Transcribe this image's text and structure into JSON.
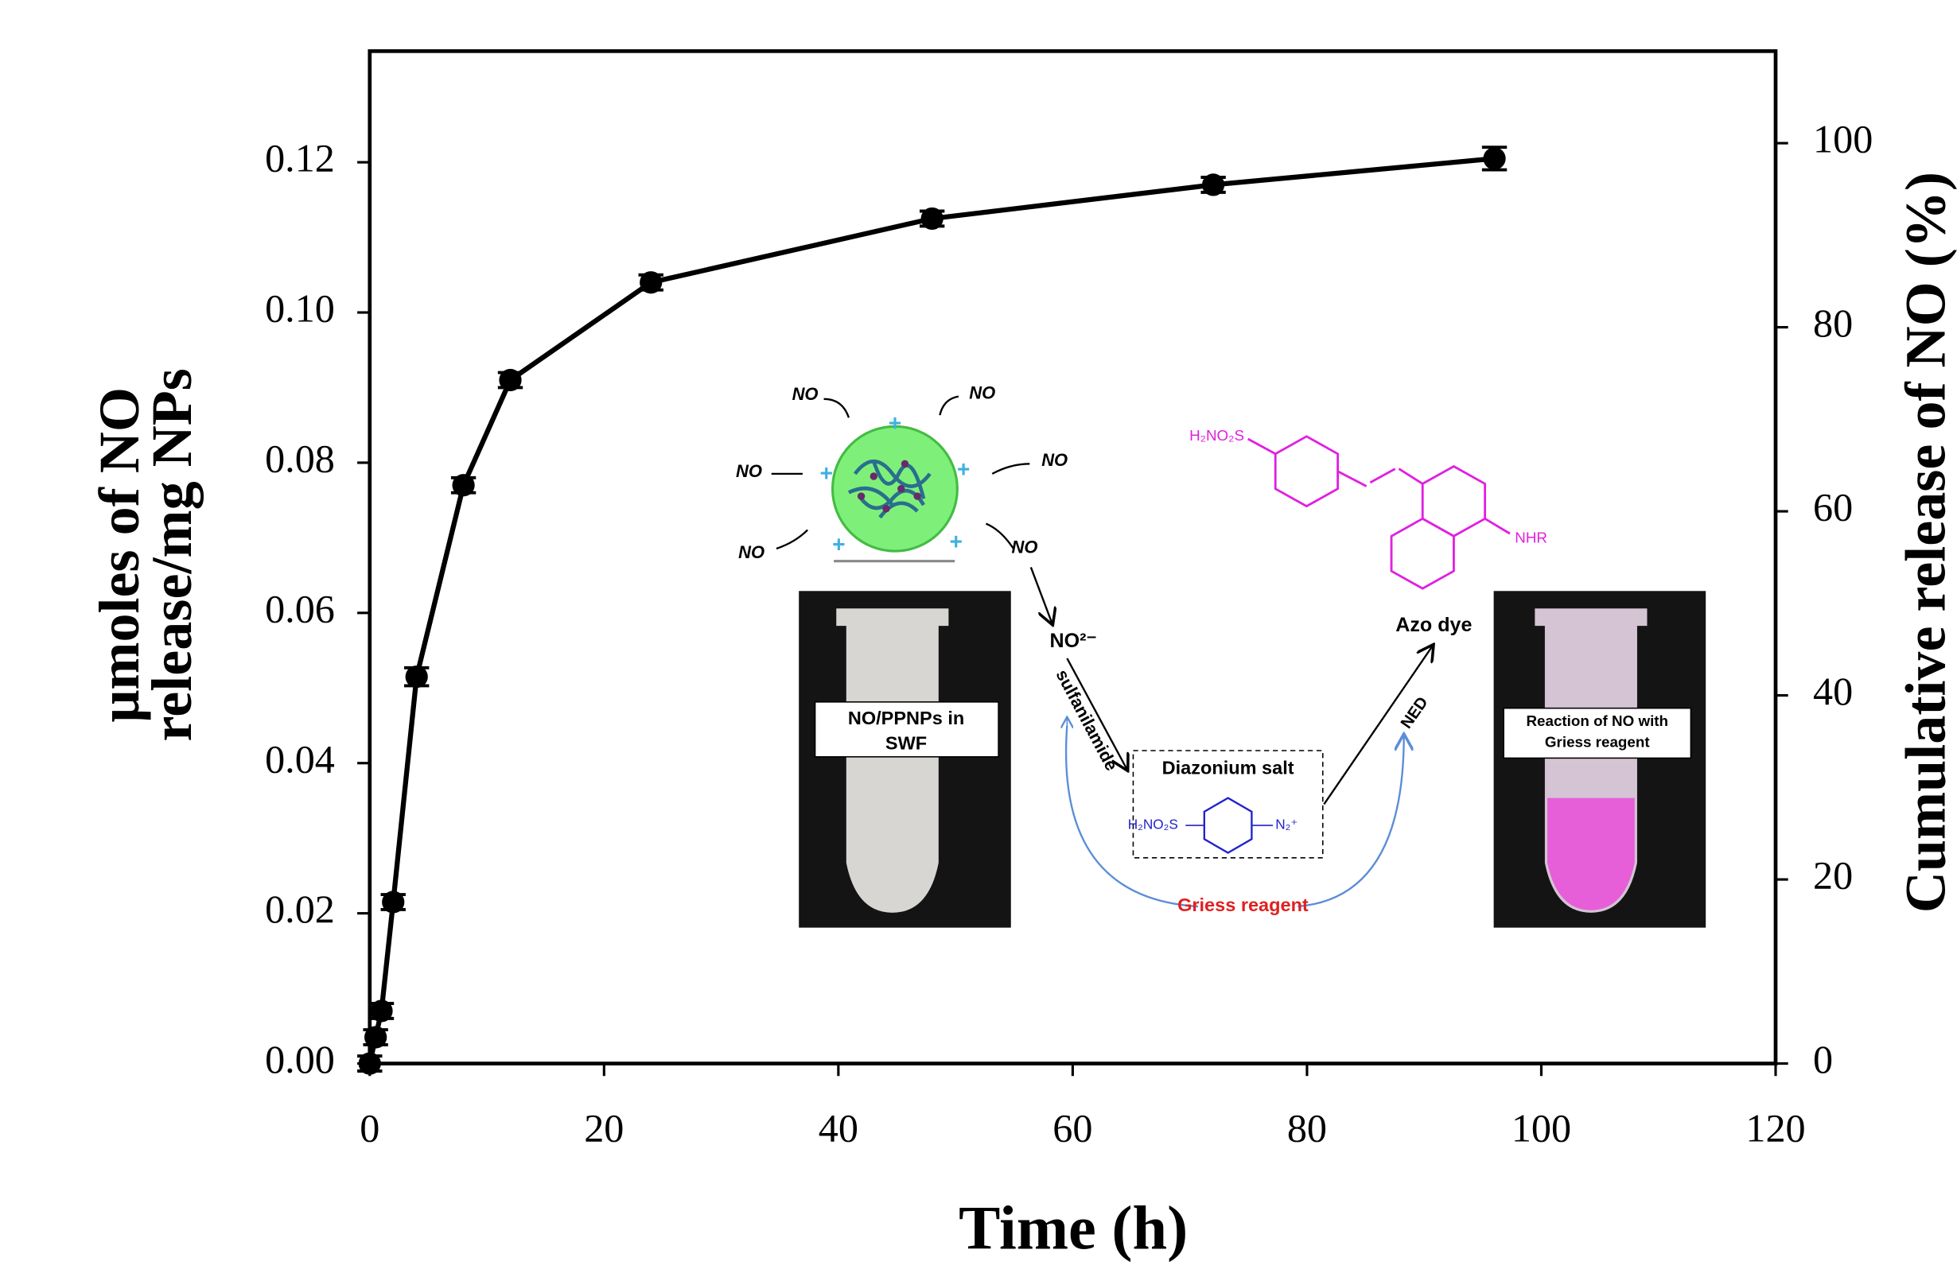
{
  "chart_data": {
    "type": "line",
    "x_label": "Time (h)",
    "y_label": [
      "μmoles of NO",
      "release/mg NPs"
    ],
    "y2_label": "Cumulative release of NO (%)",
    "x": [
      0,
      0.5,
      1,
      2,
      4,
      8,
      12,
      24,
      48,
      72,
      96
    ],
    "values": [
      0,
      0.0035,
      0.007,
      0.0215,
      0.0515,
      0.077,
      0.091,
      0.104,
      0.1125,
      0.117,
      0.1205
    ],
    "errors": [
      0.001,
      0.001,
      0.001,
      0.001,
      0.0012,
      0.001,
      0.001,
      0.001,
      0.001,
      0.001,
      0.0015
    ],
    "color": "#000000",
    "xlim": [
      0,
      120
    ],
    "xticks": [
      0,
      20,
      40,
      60,
      80,
      100,
      120
    ],
    "ylim": [
      0,
      0.1348
    ],
    "yticks": [
      {
        "value": 0,
        "label": "0.00"
      },
      {
        "value": 0.02,
        "label": "0.02"
      },
      {
        "value": 0.04,
        "label": "0.04"
      },
      {
        "value": 0.06,
        "label": "0.06"
      },
      {
        "value": 0.08,
        "label": "0.08"
      },
      {
        "value": 0.1,
        "label": "0.10"
      },
      {
        "value": 0.12,
        "label": "0.12"
      }
    ],
    "y2lim": [
      0,
      110
    ],
    "y2ticks": [
      0,
      20,
      40,
      60,
      80,
      100
    ],
    "inset": {
      "no_labels": [
        "NO",
        "NO",
        "NO",
        "NO",
        "NO",
        "NO"
      ],
      "photo1_label": [
        "NO/PPNPs in",
        "SWF"
      ],
      "nitrite": "NO²⁻",
      "step1": "sulfanilamide",
      "intermediate": "Diazonium salt",
      "diazonium_group": "H₂NO₂S",
      "diazonium_n": "N₂⁺",
      "reagent": "Griess reagent",
      "step2": "NED",
      "product": "Azo dye",
      "azo_group": "H₂NO₂S",
      "azo_nhr": "NHR",
      "photo2_label": [
        "Reaction of NO with",
        "Griess reagent"
      ]
    }
  }
}
